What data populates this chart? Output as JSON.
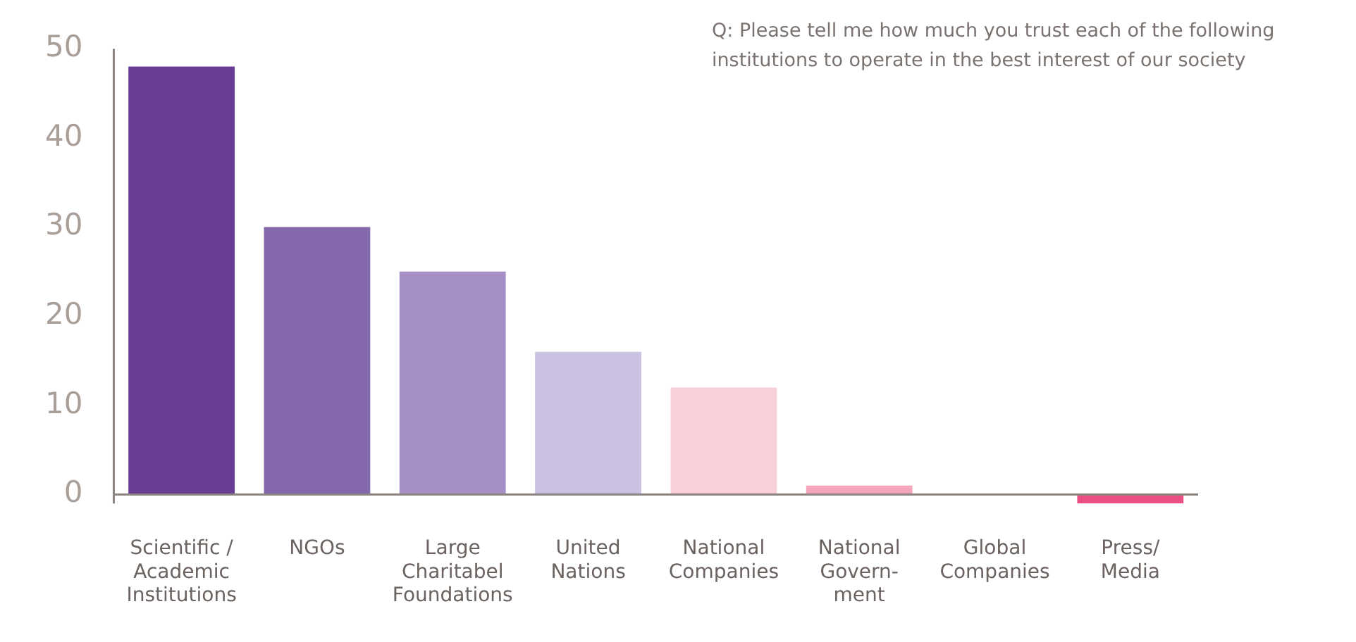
{
  "chart_data": {
    "type": "bar",
    "title": "Q: Please tell me how much you trust each of the following institutions to operate in the best interest of our society",
    "categories": [
      "Scientific /\nAcademic\nInstitutions",
      "NGOs",
      "Large\nCharitabel\nFoundations",
      "United\nNations",
      "National\nCompanies",
      "National\nGovern-\nment",
      "Global\nCompanies",
      "Press/\nMedia"
    ],
    "values": [
      48,
      30,
      25,
      16,
      12,
      1,
      0,
      -1
    ],
    "colors": [
      "#6a3d96",
      "#8368ab",
      "#a68fc4",
      "#cbc1e0",
      "#f9d0d9",
      "#f4a6ba",
      "#111111",
      "#ec4f82"
    ],
    "ylim": [
      -1,
      50
    ],
    "yticks": [
      0,
      10,
      20,
      30,
      40,
      50
    ],
    "grid": false,
    "legend": false
  }
}
